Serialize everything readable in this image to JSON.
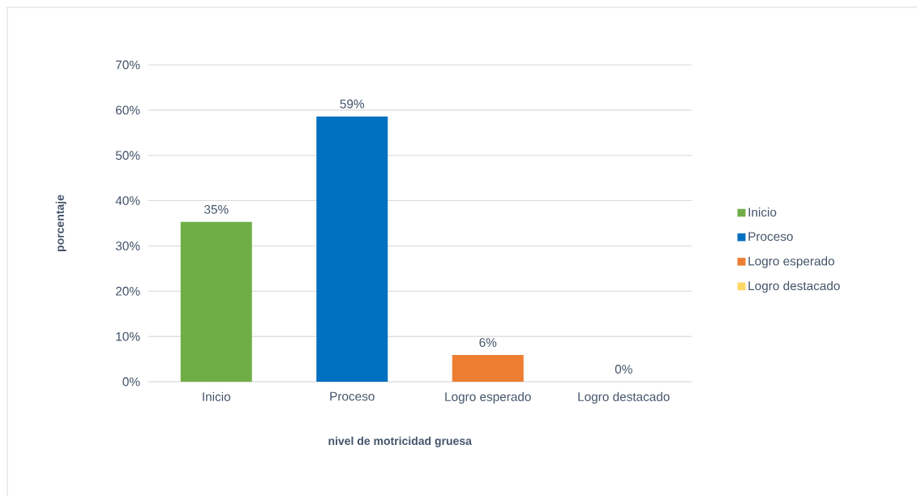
{
  "chart_data": {
    "type": "bar",
    "xlabel": "nivel de motricidad gruesa",
    "ylabel": "porcentaje",
    "categories": [
      "Inicio",
      "Proceso",
      "Logro esperado",
      "Logro destacado"
    ],
    "series": [
      {
        "name": "Inicio",
        "color": "#70ad47",
        "values": [
          35.3,
          null,
          null,
          null
        ],
        "value_labels": [
          "35%",
          null,
          null,
          null
        ]
      },
      {
        "name": "Proceso",
        "color": "#0070c0",
        "values": [
          null,
          58.6,
          null,
          null
        ],
        "value_labels": [
          null,
          "59%",
          null,
          null
        ]
      },
      {
        "name": "Logro esperado",
        "color": "#ed7d31",
        "values": [
          null,
          null,
          5.9,
          null
        ],
        "value_labels": [
          null,
          null,
          "6%",
          null
        ]
      },
      {
        "name": "Logro destacado",
        "color": "#ffd966",
        "values": [
          null,
          null,
          null,
          0
        ],
        "value_labels": [
          null,
          null,
          null,
          "0%"
        ]
      }
    ],
    "ylim": [
      0,
      70
    ],
    "yticks": [
      {
        "value": 0,
        "label": "0%"
      },
      {
        "value": 10,
        "label": "10%"
      },
      {
        "value": 20,
        "label": "20%"
      },
      {
        "value": 30,
        "label": "30%"
      },
      {
        "value": 40,
        "label": "40%"
      },
      {
        "value": 50,
        "label": "50%"
      },
      {
        "value": 60,
        "label": "60%"
      },
      {
        "value": 70,
        "label": "70%"
      }
    ],
    "grid": "y",
    "legend": "right"
  }
}
